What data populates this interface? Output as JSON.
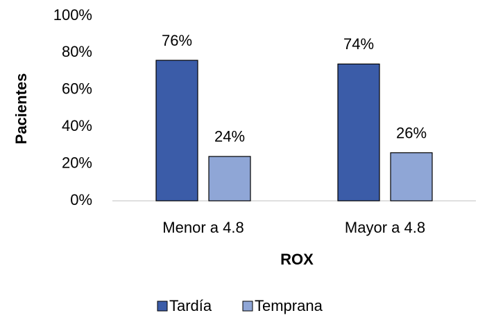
{
  "chart_data": {
    "type": "bar",
    "categories": [
      "Menor a 4.8",
      "Mayor a 4.8"
    ],
    "series": [
      {
        "name": "Tardía",
        "color": "#3b5ca8",
        "values": [
          76,
          74
        ],
        "value_labels": [
          "76%",
          "74%"
        ]
      },
      {
        "name": "Temprana",
        "color": "#8fa6d6",
        "values": [
          24,
          26
        ],
        "value_labels": [
          "24%",
          "26%"
        ]
      }
    ],
    "xlabel": "ROX",
    "ylabel": "Pacientes",
    "ylim": [
      0,
      100
    ],
    "yticks": [
      {
        "value": 0,
        "label": "0%"
      },
      {
        "value": 20,
        "label": "20%"
      },
      {
        "value": 40,
        "label": "40%"
      },
      {
        "value": 60,
        "label": "60%"
      },
      {
        "value": 80,
        "label": "80%"
      },
      {
        "value": 100,
        "label": "100%"
      }
    ],
    "grid": false,
    "legend": "bottom"
  }
}
